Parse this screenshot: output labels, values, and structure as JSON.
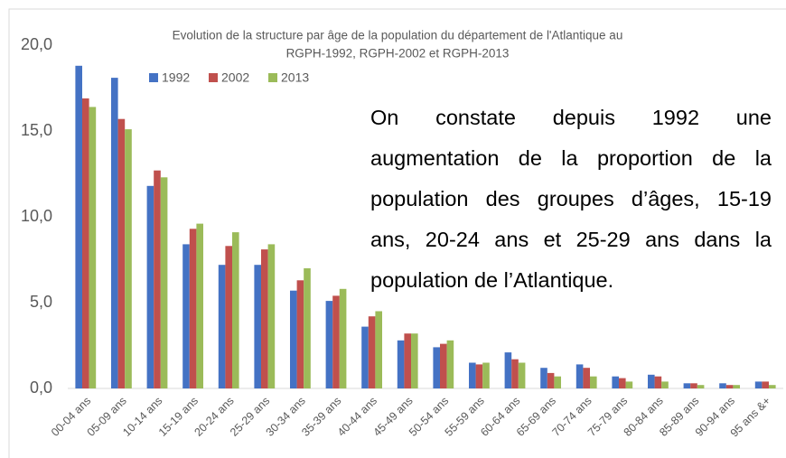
{
  "chart_data": {
    "type": "bar",
    "title": [
      "Evolution de la structure par âge de la population du département de l'Atlantique au",
      "RGPH-1992, RGPH-2002 et RGPH-2013"
    ],
    "annotation": "On constate depuis 1992 une augmentation de la proportion de la population des groupes d’âges, 15-19 ans, 20-24 ans et 25-29 ans dans la population de l’Atlantique.",
    "categories": [
      "00-04 ans",
      "05-09 ans",
      "10-14 ans",
      "15-19 ans",
      "20-24 ans",
      "25-29 ans",
      "30-34 ans",
      "35-39 ans",
      "40-44 ans",
      "45-49 ans",
      "50-54 ans",
      "55-59 ans",
      "60-64 ans",
      "65-69 ans",
      "70-74 ans",
      "75-79 ans",
      "80-84 ans",
      "85-89 ans",
      "90-94 ans",
      "95 ans &+"
    ],
    "series": [
      {
        "name": "1992",
        "color": "#4472c4",
        "values": [
          18.8,
          18.1,
          11.8,
          8.4,
          7.2,
          7.2,
          5.7,
          5.1,
          3.6,
          2.8,
          2.4,
          1.5,
          2.1,
          1.2,
          1.4,
          0.7,
          0.8,
          0.3,
          0.3,
          0.4
        ]
      },
      {
        "name": "2002",
        "color": "#c0504d",
        "values": [
          16.9,
          15.7,
          12.7,
          9.3,
          8.3,
          8.1,
          6.3,
          5.4,
          4.2,
          3.2,
          2.6,
          1.4,
          1.7,
          0.9,
          1.2,
          0.6,
          0.7,
          0.3,
          0.2,
          0.4
        ]
      },
      {
        "name": "2013",
        "color": "#9bbb59",
        "values": [
          16.4,
          15.1,
          12.3,
          9.6,
          9.1,
          8.4,
          7.0,
          5.8,
          4.5,
          3.2,
          2.8,
          1.5,
          1.5,
          0.7,
          0.7,
          0.4,
          0.4,
          0.2,
          0.2,
          0.2
        ]
      }
    ],
    "ylim": [
      0,
      20
    ],
    "yticks": [
      {
        "value": 0,
        "label": "0,0"
      },
      {
        "value": 5,
        "label": "5,0"
      },
      {
        "value": 10,
        "label": "10,0"
      },
      {
        "value": 15,
        "label": "15,0"
      },
      {
        "value": 20,
        "label": "20,0"
      }
    ],
    "grid": false
  }
}
